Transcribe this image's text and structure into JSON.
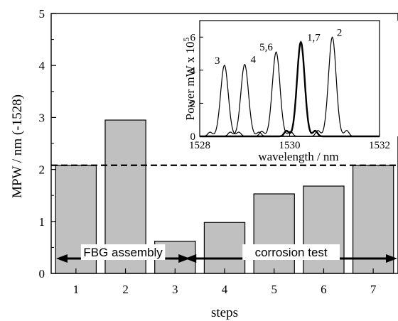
{
  "chart_data": [
    {
      "type": "bar",
      "xlabel": "steps",
      "ylabel": "MPW  /  nm (-1528)",
      "categories": [
        "1",
        "2",
        "3",
        "4",
        "5",
        "6",
        "7"
      ],
      "values": [
        2.08,
        2.95,
        0.62,
        0.98,
        1.53,
        1.68,
        2.08
      ],
      "ylim": [
        0,
        5
      ],
      "yticks": [
        "0",
        "1",
        "2",
        "3",
        "4",
        "5"
      ],
      "reference_line": {
        "y": 2.08,
        "style": "dashed"
      },
      "annotations": [
        {
          "text": "FBG assembly",
          "from_step": 0.6,
          "to_step": 3.3
        },
        {
          "text": "corrosion test",
          "from_step": 3.2,
          "to_step": 7.7
        }
      ],
      "bar_color": "#c0c0c0"
    },
    {
      "type": "line",
      "xlabel": "wavelength  /  nm",
      "ylabel": "Power mW x 10^5",
      "ylabel_base": "Power mW x 10",
      "ylabel_exp": "5",
      "xlim": [
        1528,
        1532
      ],
      "ylim": [
        0,
        7
      ],
      "xticks": [
        "1528",
        "1530",
        "1532"
      ],
      "yticks": [
        "0",
        "2",
        "4",
        "6"
      ],
      "peaks": [
        {
          "label": "3",
          "center": 1528.55,
          "height": 4.3
        },
        {
          "label": "4",
          "center": 1529.0,
          "height": 4.35
        },
        {
          "label": "5,6",
          "center": 1529.7,
          "height": 5.1
        },
        {
          "label": "1,7",
          "center": 1530.25,
          "height": 5.7,
          "bold": true
        },
        {
          "label": "2",
          "center": 1530.95,
          "height": 6.0
        }
      ]
    }
  ]
}
